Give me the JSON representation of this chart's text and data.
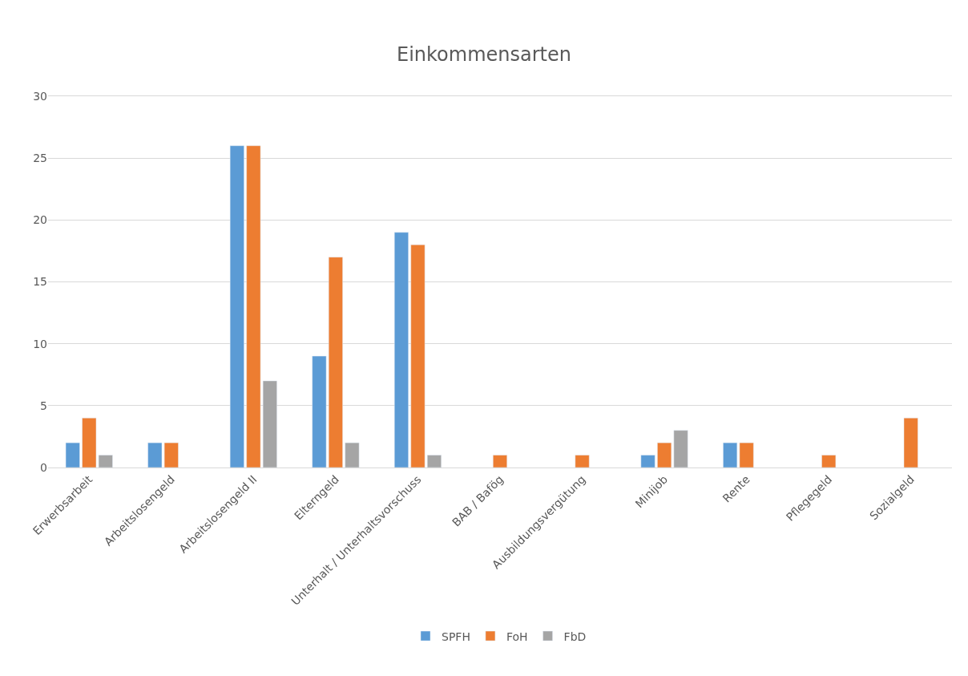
{
  "chart_data": {
    "type": "bar",
    "title": "Einkommensarten",
    "categories": [
      "Erwerbsarbeit",
      "Arbeitslosengeld",
      "Arbeitslosengeld II",
      "Elterngeld",
      "Unterhalt / Unterhaltsvorschuss",
      "BAB / Bafög",
      "Ausbildungsvergütung",
      "Minijob",
      "Rente",
      "Pflegegeld",
      "Sozialgeld"
    ],
    "series": [
      {
        "name": "SPFH",
        "color": "#5b9bd5",
        "values": [
          2,
          2,
          26,
          9,
          19,
          null,
          null,
          1,
          2,
          null,
          null
        ]
      },
      {
        "name": "FoH",
        "color": "#ed7d31",
        "values": [
          4,
          2,
          26,
          17,
          18,
          1,
          1,
          2,
          2,
          1,
          4
        ]
      },
      {
        "name": "FbD",
        "color": "#a5a5a5",
        "values": [
          1,
          null,
          7,
          2,
          1,
          null,
          null,
          3,
          null,
          null,
          null
        ]
      }
    ],
    "ylim": [
      0,
      30
    ],
    "yticks": [
      0,
      5,
      10,
      15,
      20,
      25,
      30
    ],
    "grid": "y",
    "legend": "bottom"
  }
}
